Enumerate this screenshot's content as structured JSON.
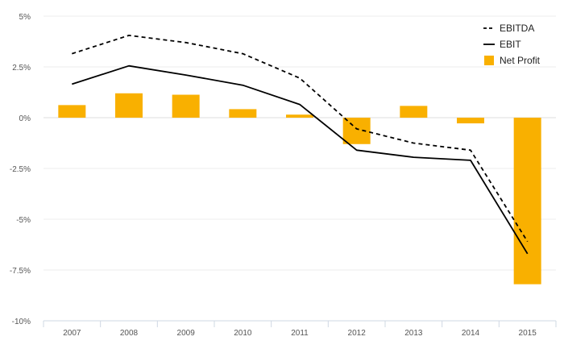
{
  "chart_data": {
    "type": "bar",
    "categories": [
      "2007",
      "2008",
      "2009",
      "2010",
      "2011",
      "2012",
      "2013",
      "2014",
      "2015"
    ],
    "series": [
      {
        "name": "EBITDA",
        "type": "line",
        "style": "dashed",
        "color": "#000000",
        "values": [
          3.15,
          4.05,
          3.7,
          3.15,
          1.95,
          -0.55,
          -1.25,
          -1.6,
          -6.1
        ]
      },
      {
        "name": "EBIT",
        "type": "line",
        "style": "solid",
        "color": "#000000",
        "values": [
          1.65,
          2.55,
          2.1,
          1.6,
          0.65,
          -1.6,
          -1.95,
          -2.1,
          -6.7
        ]
      },
      {
        "name": "Net Profit",
        "type": "bar",
        "color": "#f9b000",
        "values": [
          0.62,
          1.2,
          1.13,
          0.42,
          0.15,
          -1.3,
          0.58,
          -0.28,
          -8.2
        ]
      }
    ],
    "yticks": [
      5,
      2.5,
      0,
      -2.5,
      -5,
      -7.5,
      -10
    ],
    "ytick_labels": [
      "5%",
      "2.5%",
      "0%",
      "-2.5%",
      "-5%",
      "-7.5%",
      "-10%"
    ],
    "ylim": [
      -10,
      5
    ],
    "grid": true,
    "legend_position": "top-right"
  }
}
